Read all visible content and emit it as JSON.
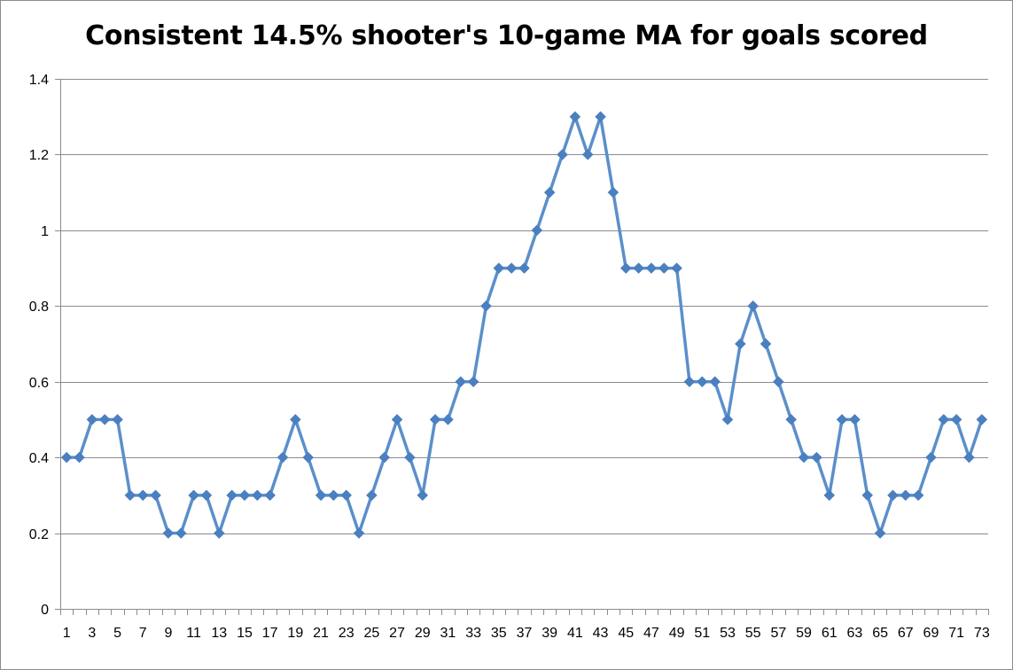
{
  "chart_data": {
    "type": "line",
    "title": "Consistent 14.5% shooter's 10-game MA for goals scored",
    "xlabel": "",
    "ylabel": "",
    "x": [
      1,
      2,
      3,
      4,
      5,
      6,
      7,
      8,
      9,
      10,
      11,
      12,
      13,
      14,
      15,
      16,
      17,
      18,
      19,
      20,
      21,
      22,
      23,
      24,
      25,
      26,
      27,
      28,
      29,
      30,
      31,
      32,
      33,
      34,
      35,
      36,
      37,
      38,
      39,
      40,
      41,
      42,
      43,
      44,
      45,
      46,
      47,
      48,
      49,
      50,
      51,
      52,
      53,
      54,
      55,
      56,
      57,
      58,
      59,
      60,
      61,
      62,
      63,
      64,
      65,
      66,
      67,
      68,
      69,
      70,
      71,
      72,
      73
    ],
    "x_tick_labels": [
      "1",
      "3",
      "5",
      "7",
      "9",
      "11",
      "13",
      "15",
      "17",
      "19",
      "21",
      "23",
      "25",
      "27",
      "29",
      "31",
      "33",
      "35",
      "37",
      "39",
      "41",
      "43",
      "45",
      "47",
      "49",
      "51",
      "53",
      "55",
      "57",
      "59",
      "61",
      "63",
      "65",
      "67",
      "69",
      "71",
      "73"
    ],
    "series": [
      {
        "values": [
          0.4,
          0.4,
          0.5,
          0.5,
          0.5,
          0.3,
          0.3,
          0.3,
          0.2,
          0.2,
          0.3,
          0.3,
          0.2,
          0.3,
          0.3,
          0.3,
          0.3,
          0.4,
          0.5,
          0.4,
          0.3,
          0.3,
          0.3,
          0.2,
          0.3,
          0.4,
          0.5,
          0.4,
          0.3,
          0.5,
          0.5,
          0.6,
          0.6,
          0.8,
          0.9,
          0.9,
          0.9,
          1.0,
          1.1,
          1.2,
          1.3,
          1.2,
          1.3,
          1.1,
          0.9,
          0.9,
          0.9,
          0.9,
          0.9,
          0.6,
          0.6,
          0.6,
          0.5,
          0.7,
          0.8,
          0.7,
          0.6,
          0.5,
          0.4,
          0.4,
          0.3,
          0.5,
          0.5,
          0.3,
          0.2,
          0.3,
          0.3,
          0.3,
          0.4,
          0.5,
          0.5,
          0.4,
          0.5
        ],
        "marker": "diamond"
      }
    ],
    "ylim": [
      0,
      1.4
    ],
    "y_ticks": [
      0,
      0.2,
      0.4,
      0.6,
      0.8,
      1,
      1.2,
      1.4
    ],
    "y_tick_labels": [
      "0",
      "0.2",
      "0.4",
      "0.6",
      "0.8",
      "1",
      "1.2",
      "1.4"
    ],
    "grid": "horizontal",
    "legend": "none",
    "colors": {
      "line": "#5b8fcb",
      "marker": "#4a7fc0",
      "grid": "#8c8c8c",
      "axis": "#8c8c8c"
    }
  }
}
